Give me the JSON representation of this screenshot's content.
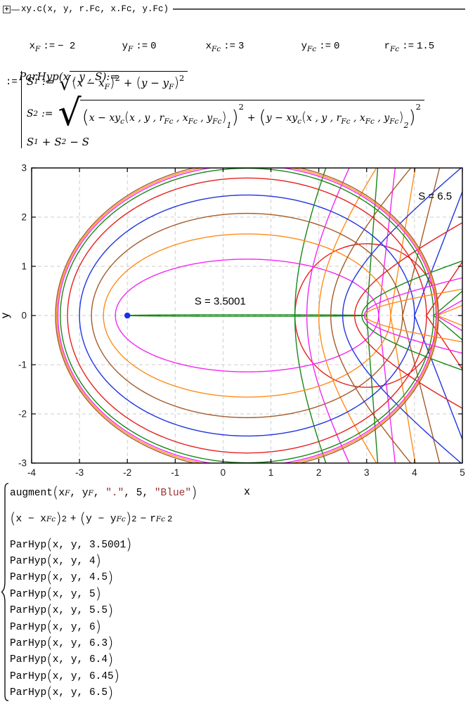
{
  "header": {
    "collapse_icon": "+",
    "dash": "—",
    "title": "xy.c(x, y, r.Fc, x.Fc, y.Fc)"
  },
  "syms": {
    "lp": "(",
    "rp": ")"
  },
  "definitions": [
    {
      "base": "x",
      "sub": "F",
      "assign": ":=",
      "value": "− 2"
    },
    {
      "base": "y",
      "sub": "F",
      "assign": ":=",
      "value": "0"
    },
    {
      "base": "x",
      "sub": "Fc",
      "assign": ":=",
      "value": "3"
    },
    {
      "base": "y",
      "sub": "Fc",
      "assign": ":=",
      "value": "0"
    },
    {
      "base": "r",
      "sub": "Fc",
      "assign": ":=",
      "value": "1.5"
    }
  ],
  "parhyp_def": {
    "name": "ParHyp",
    "args": "(x , y , S)",
    "assign": ":=",
    "outer_assign": ":=",
    "s1": {
      "lhs": "S",
      "sub": "1",
      "assign": ":=",
      "a": "x − x",
      "asub": "F",
      "plus": "+",
      "b": "y − y",
      "bsub": "F",
      "exp": "2"
    },
    "xyc": {
      "fn": "xy",
      "fnsub": "c",
      "a": "x , y , r",
      "s1": "Fc",
      "b": " , x",
      "s2": "Fc",
      "c": " , y",
      "s3": "Fc"
    },
    "s2": {
      "lhs": "S",
      "sub": "2",
      "assign": ":=",
      "a": "x − ",
      "b": "y − ",
      "idx1": "1",
      "idx2": "2",
      "exp": "2",
      "plus": "+"
    },
    "ret": {
      "a": "S",
      "asub": "1",
      "plus": "+",
      "b": "S",
      "bsub": "2",
      "tail": "− S"
    }
  },
  "plot_list": {
    "row1": {
      "fn": "augment",
      "x": "x",
      "xsub": "F",
      "c1": ", ",
      "y": "y",
      "ysub": "F",
      "c2": ", ",
      "dot": "\".\"",
      "c3": ", ",
      "size": "5",
      "c4": ", ",
      "color": "\"Blue\""
    },
    "row2": {
      "p1": "x − x",
      "p1sub": "Fc",
      "e1": "2",
      "plus": "+",
      "p2": "y − y",
      "p2sub": "Fc",
      "e2": "2",
      "minus": "−",
      "r": "r",
      "rsub": "Fc",
      "e3": "2"
    },
    "parhyp_fn": "ParHyp",
    "parhyp_args": "x, y, "
  },
  "chart_data": {
    "type": "line",
    "xlabel": "x",
    "ylabel": "y",
    "xlim": [
      -4,
      5
    ],
    "ylim": [
      -3,
      3
    ],
    "x_ticks": [
      -4,
      -3,
      -2,
      -1,
      0,
      1,
      2,
      3,
      4,
      5
    ],
    "y_ticks": [
      -3,
      -2,
      -1,
      0,
      1,
      2,
      3
    ],
    "grid": true,
    "grid_color": "#cdcdcd",
    "focus_point": {
      "x": -2,
      "y": 0,
      "marker": ".",
      "size": 5,
      "color": "#1633e6",
      "label": "Blue"
    },
    "focus_circle": {
      "cx": 3,
      "cy": 0,
      "r": 1.5,
      "color": "#e62020"
    },
    "geometry": {
      "xF": -2,
      "yF": 0,
      "xFc": 3,
      "yFc": 0,
      "rFc": 1.5,
      "rule": "curve: dist to F plus dist to circle = S; ellipse sum S+1.5 outside circle joined to hyperbola branch diff S-1.5 inside circle"
    },
    "s_values": [
      3.5001,
      4,
      4.5,
      5,
      5.5,
      6,
      6.3,
      6.4,
      6.45,
      6.5
    ],
    "series_colors": [
      "#178717",
      "#f427f4",
      "#ff8c1a",
      "#a35b2a",
      "#1f35e0",
      "#e62020",
      "#178717",
      "#f427f4",
      "#ff8c1a",
      "#a35b2a"
    ],
    "annotations": [
      {
        "text": "S = 6.5",
        "x": 4.43,
        "y": 2.43
      },
      {
        "text": "S = 3.5001",
        "x": -0.06,
        "y": 0.29
      }
    ]
  }
}
